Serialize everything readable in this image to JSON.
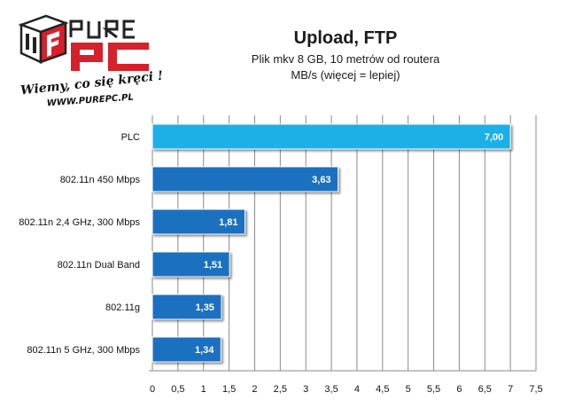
{
  "title": "Upload, FTP",
  "subtitle": "Plik mkv 8 GB, 10 metrów od routera",
  "unit": "MB/s (więcej = lepiej)",
  "logo": {
    "brand": "PUREPC",
    "tagline": "Wiemy, co się kręci !",
    "url": "WWW.PUREPC.PL"
  },
  "colors": {
    "highlight_bar": "#1ab0e8",
    "bar": "#1a6fc0",
    "logo_red": "#d8202a"
  },
  "chart_data": {
    "type": "bar",
    "orientation": "horizontal",
    "categories": [
      "PLC",
      "802.11n 450 Mbps",
      "802.11n 2,4 GHz, 300 Mbps",
      "802.11n Dual Band",
      "802.11g",
      "802.11n 5 GHz, 300 Mbps"
    ],
    "values": [
      7.0,
      3.63,
      1.81,
      1.51,
      1.35,
      1.34
    ],
    "value_labels": [
      "7,00",
      "3,63",
      "1,81",
      "1,51",
      "1,35",
      "1,34"
    ],
    "highlight_index": 0,
    "xlim": [
      0,
      7.5
    ],
    "xticks": [
      0,
      0.5,
      1,
      1.5,
      2,
      2.5,
      3,
      3.5,
      4,
      4.5,
      5,
      5.5,
      6,
      6.5,
      7,
      7.5
    ],
    "xtick_labels": [
      "0",
      "0,5",
      "1",
      "1,5",
      "2",
      "2,5",
      "3",
      "3,5",
      "4",
      "4,5",
      "5",
      "5,5",
      "6",
      "6,5",
      "7",
      "7,5"
    ],
    "grid": "vertical"
  }
}
